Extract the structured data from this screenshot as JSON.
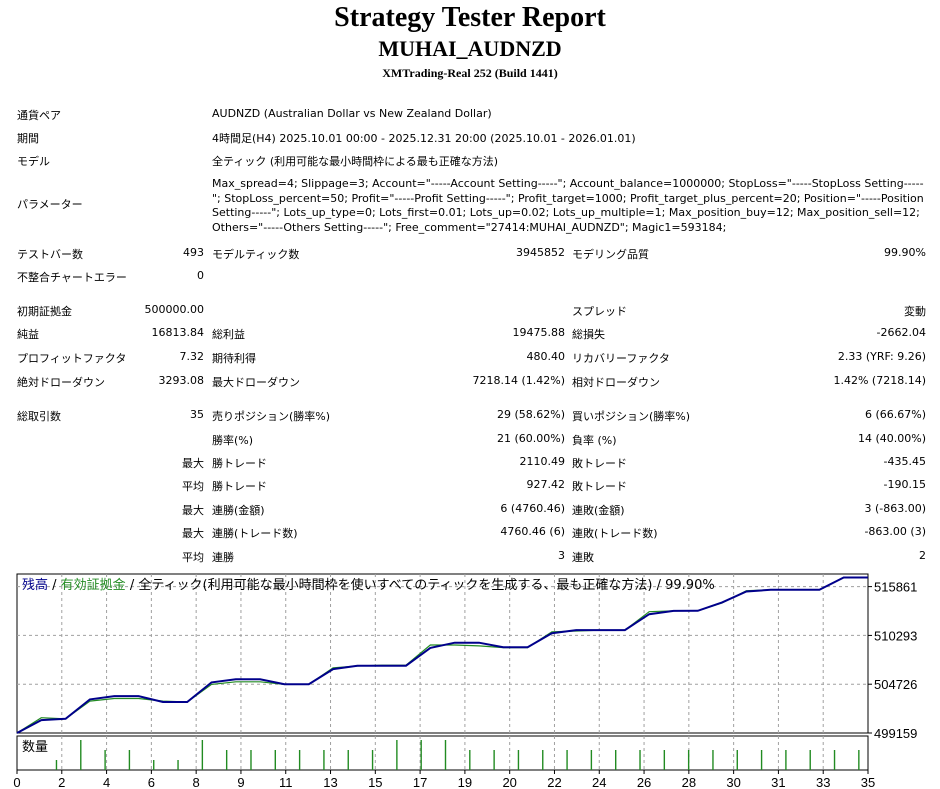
{
  "header": {
    "title": "Strategy Tester Report",
    "expert": "MUHAI_AUDNZD",
    "server": "XMTrading-Real 252 (Build 1441)"
  },
  "info": {
    "symbol_label": "通貨ペア",
    "symbol_value": "AUDNZD (Australian Dollar vs New Zealand Dollar)",
    "period_label": "期間",
    "period_value": "4時間足(H4) 2025.10.01 00:00 - 2025.12.31 20:00 (2025.10.01 - 2026.01.01)",
    "model_label": "モデル",
    "model_value": "全ティック (利用可能な最小時間枠による最も正確な方法)",
    "params_label": "パラメーター",
    "params_value": "Max_spread=4; Slippage=3; Account=\"-----Account Setting-----\"; Account_balance=1000000; StopLoss=\"-----StopLoss Setting-----\"; StopLoss_percent=50; Profit=\"-----Profit Setting-----\"; Profit_target=1000; Profit_target_plus_percent=20; Position=\"-----Position Setting-----\"; Lots_up_type=0; Lots_first=0.01; Lots_up=0.02; Lots_up_multiple=1; Max_position_buy=12; Max_position_sell=12; Others=\"-----Others Setting-----\"; Free_comment=\"27414:MUHAI_AUDNZD\"; Magic1=593184;"
  },
  "stats1": {
    "bars_label": "テストバー数",
    "bars_value": "493",
    "ticks_label": "モデルティック数",
    "ticks_value": "3945852",
    "quality_label": "モデリング品質",
    "quality_value": "99.90%",
    "errors_label": "不整合チャートエラー",
    "errors_value": "0"
  },
  "stats2": {
    "deposit_label": "初期証拠金",
    "deposit_value": "500000.00",
    "spread_label": "スプレッド",
    "spread_value": "変動",
    "net_label": "純益",
    "net_value": "16813.84",
    "gross_profit_label": "総利益",
    "gross_profit_value": "19475.88",
    "gross_loss_label": "総損失",
    "gross_loss_value": "-2662.04",
    "pf_label": "プロフィットファクタ",
    "pf_value": "7.32",
    "payoff_label": "期待利得",
    "payoff_value": "480.40",
    "rf_label": "リカバリーファクタ",
    "rf_value": "2.33 (YRF: 9.26)",
    "abs_dd_label": "絶対ドローダウン",
    "abs_dd_value": "3293.08",
    "max_dd_label": "最大ドローダウン",
    "max_dd_value": "7218.14 (1.42%)",
    "rel_dd_label": "相対ドローダウン",
    "rel_dd_value": "1.42% (7218.14)"
  },
  "trades": {
    "total_label": "総取引数",
    "total_value": "35",
    "short_label": "売りポジション(勝率%)",
    "short_value": "29 (58.62%)",
    "long_label": "買いポジション(勝率%)",
    "long_value": "6 (66.67%)",
    "winrate_label": "勝率(%)",
    "winrate_value": "21 (60.00%)",
    "lossrate_label": "負率 (%)",
    "lossrate_value": "14 (40.00%)",
    "max": "最大",
    "avg": "平均",
    "win_trade_label": "勝トレード",
    "max_win_value": "2110.49",
    "loss_trade_label": "敗トレード",
    "max_loss_value": "-435.45",
    "avg_win_value": "927.42",
    "avg_loss_value": "-190.15",
    "cw_amt_label": "連勝(金額)",
    "cw_amt_value": "6 (4760.46)",
    "cl_amt_label": "連敗(金額)",
    "cl_amt_value": "3 (-863.00)",
    "cw_cnt_label": "連勝(トレード数)",
    "cw_cnt_value": "4760.46 (6)",
    "cl_cnt_label": "連敗(トレード数)",
    "cl_cnt_value": "-863.00 (3)",
    "cw_label": "連勝",
    "cw_value": "3",
    "cl_label": "連敗",
    "cl_value": "2"
  },
  "chart_legend": {
    "balance": "残高",
    "sep1": " / ",
    "equity": "有効証拠金",
    "rest": " / 全ティック(利用可能な最小時間枠を使いすべてのティックを生成する、最も正確な方法) / 99.90%",
    "volume": "数量"
  },
  "colors": {
    "balance": "#00008b",
    "equity": "#228b22",
    "grid": "#a0a0a0",
    "bg": "#ffffff"
  },
  "chart_data": {
    "type": "line",
    "ylabels": [
      "515861",
      "510293",
      "504726",
      "499159"
    ],
    "xlabels": [
      "0",
      "2",
      "4",
      "6",
      "8",
      "9",
      "11",
      "13",
      "15",
      "17",
      "19",
      "20",
      "22",
      "24",
      "26",
      "28",
      "30",
      "31",
      "33",
      "35"
    ],
    "ylim": [
      499159,
      517300
    ],
    "x": [
      0,
      1,
      2,
      3,
      4,
      5,
      6,
      7,
      8,
      9,
      10,
      11,
      12,
      13,
      14,
      15,
      16,
      17,
      18,
      19,
      20,
      21,
      22,
      23,
      24,
      25,
      26,
      27,
      28,
      29,
      30,
      31,
      32,
      33,
      34,
      35
    ],
    "series": [
      {
        "name": "残高",
        "values": [
          499159,
          500626,
          500780,
          502990,
          503364,
          503370,
          502693,
          502693,
          504930,
          505290,
          505288,
          504727,
          504727,
          506453,
          506838,
          506838,
          506838,
          508873,
          509465,
          509465,
          508945,
          508945,
          510545,
          510900,
          510900,
          510900,
          512710,
          513095,
          513100,
          514060,
          515300,
          515500,
          515500,
          515500,
          516900,
          516900
        ]
      },
      {
        "name": "有効証拠金",
        "values": [
          499159,
          500900,
          500780,
          502800,
          503100,
          503100,
          502800,
          502700,
          504700,
          505000,
          505000,
          504700,
          504700,
          506600,
          506800,
          506900,
          506900,
          509200,
          509200,
          509100,
          508900,
          508900,
          510700,
          510800,
          510900,
          510900,
          513000,
          513100,
          513100,
          514000,
          515400,
          515500,
          515500,
          515500,
          516900,
          516900
        ]
      }
    ],
    "volume": [
      1,
      0,
      1,
      3,
      2,
      2,
      1,
      1,
      3,
      2,
      2,
      2,
      2,
      2,
      2,
      2,
      3,
      3,
      3,
      2,
      2,
      2,
      2,
      2,
      2,
      2,
      2,
      2,
      2,
      2,
      2,
      2,
      2,
      2,
      2,
      2
    ]
  }
}
